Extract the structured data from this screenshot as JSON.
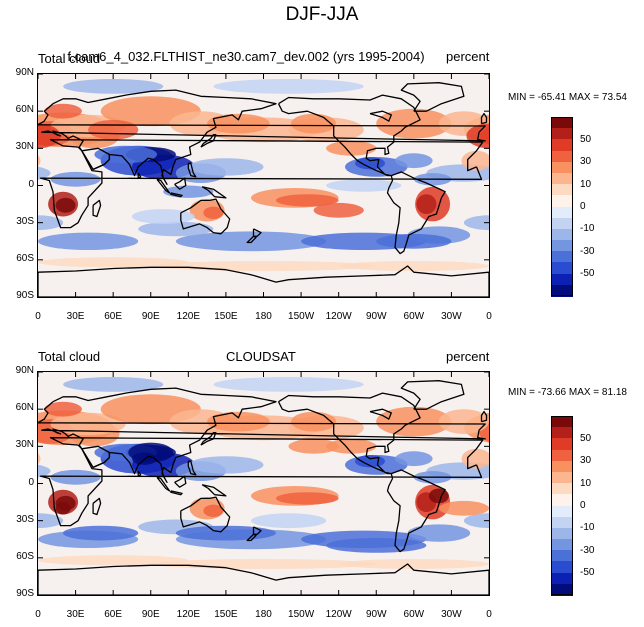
{
  "main_title": "DJF-JJA",
  "panels": [
    {
      "left_label": "Total cloud",
      "center_label": "f.cam6_4_032.FLTHIST_ne30.cam7_dev.002 (yrs 1995-2004)",
      "right_label": "percent",
      "minmax": "MIN = -65.41  MAX =  73.54"
    },
    {
      "left_label": "Total cloud",
      "center_label": "CLOUDSAT",
      "right_label": "percent",
      "minmax": "MIN = -73.66  MAX =  81.18"
    }
  ],
  "lat_ticks": [
    "90N",
    "60N",
    "30N",
    "0",
    "30S",
    "60S",
    "90S"
  ],
  "lon_ticks": [
    "0",
    "30E",
    "60E",
    "90E",
    "120E",
    "150E",
    "180",
    "150W",
    "120W",
    "90W",
    "60W",
    "30W",
    "0"
  ],
  "colorbar": {
    "labels": [
      "50",
      "30",
      "10",
      "0",
      "-10",
      "-30",
      "-50"
    ],
    "colors": [
      "#7a0a0a",
      "#b3201a",
      "#df3b26",
      "#f0623f",
      "#f8905f",
      "#fbb690",
      "#fddbc2",
      "#fdf3ea",
      "#e3ecfa",
      "#c3d4f3",
      "#9db6ea",
      "#7495e0",
      "#4b70d8",
      "#2a4cd0",
      "#0c20b4",
      "#020c7a"
    ]
  }
}
